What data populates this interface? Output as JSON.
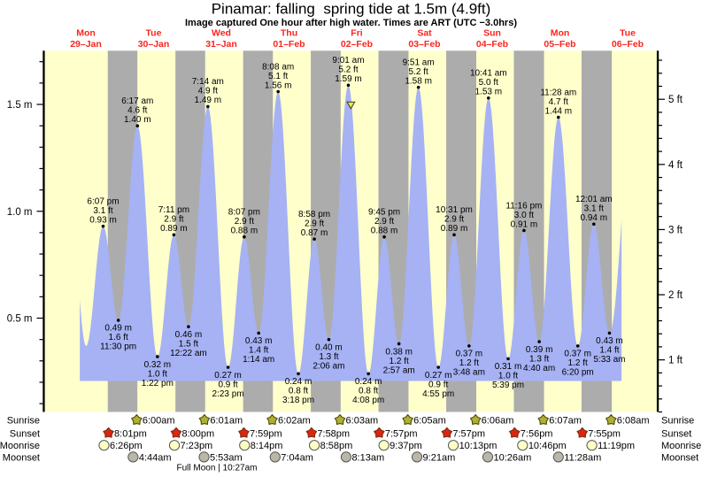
{
  "title": "Pinamar: falling  spring tide at 1.5m (4.9ft)",
  "subtitle": "Image captured One hour after high water. Times are ART (UTC −3.0hrs)",
  "days": [
    {
      "name": "Mon",
      "date": "29–Jan"
    },
    {
      "name": "Tue",
      "date": "30–Jan"
    },
    {
      "name": "Wed",
      "date": "31–Jan"
    },
    {
      "name": "Thu",
      "date": "01–Feb"
    },
    {
      "name": "Fri",
      "date": "02–Feb"
    },
    {
      "name": "Sat",
      "date": "03–Feb"
    },
    {
      "name": "Sun",
      "date": "04–Feb"
    },
    {
      "name": "Mon",
      "date": "05–Feb"
    },
    {
      "name": "Tue",
      "date": "06–Feb"
    }
  ],
  "chart_data": {
    "type": "area",
    "title": "Pinamar: falling  spring tide at 1.5m (4.9ft)",
    "x_axis": "time, hours since Mon 29-Jan 00:00 ART",
    "y_axis_left": {
      "unit": "m",
      "major_ticks": [
        {
          "label": "0.5 m",
          "v": 0.5
        },
        {
          "label": "1.0 m",
          "v": 1.0
        },
        {
          "label": "1.5 m",
          "v": 1.5
        }
      ],
      "minor_step": 0.1,
      "minor_min": 0.1,
      "minor_max": 1.7
    },
    "y_axis_right": {
      "unit": "ft",
      "major_ticks": [
        {
          "label": "1 ft",
          "ft": 1
        },
        {
          "label": "2 ft",
          "ft": 2
        },
        {
          "label": "3 ft",
          "ft": 3
        },
        {
          "label": "4 ft",
          "ft": 4
        },
        {
          "label": "5 ft",
          "ft": 5
        }
      ],
      "minor_step": 0.2,
      "minor_min": 0.2,
      "minor_max": 5.6
    },
    "curve_start": {
      "t": 9.85,
      "m": 0.59
    },
    "curve_end": {
      "t": 201.85,
      "m": 0.96
    },
    "hidden_pre_high": {
      "t": 5.2,
      "m": 1.28
    },
    "unlabeled_first_low": {
      "t": 12.1,
      "m": 0.37
    },
    "hidden_post_high": {
      "t": 206.2,
      "m": 1.5
    },
    "extrema": [
      {
        "kind": "high",
        "t": 18.1167,
        "m": 0.93,
        "time": "6:07 pm",
        "ft_label": "3.1 ft",
        "m_label": "0.93 m"
      },
      {
        "kind": "low",
        "t": 23.5,
        "m": 0.49,
        "time": "11:30 pm",
        "ft_label": "1.6 ft",
        "m_label": "0.49 m"
      },
      {
        "kind": "high",
        "t": 30.2833,
        "m": 1.4,
        "time": "6:17 am",
        "ft_label": "4.6 ft",
        "m_label": "1.40 m"
      },
      {
        "kind": "low",
        "t": 37.3667,
        "m": 0.32,
        "time": "1:22 pm",
        "ft_label": "1.0 ft",
        "m_label": "0.32 m"
      },
      {
        "kind": "high",
        "t": 43.1833,
        "m": 0.89,
        "time": "7:11 pm",
        "ft_label": "2.9 ft",
        "m_label": "0.89 m"
      },
      {
        "kind": "low",
        "t": 48.3667,
        "m": 0.46,
        "time": "12:22 am",
        "ft_label": "1.5 ft",
        "m_label": "0.46 m"
      },
      {
        "kind": "high",
        "t": 55.2333,
        "m": 1.49,
        "time": "7:14 am",
        "ft_label": "4.9 ft",
        "m_label": "1.49 m"
      },
      {
        "kind": "low",
        "t": 62.3833,
        "m": 0.27,
        "time": "2:23 pm",
        "ft_label": "0.9 ft",
        "m_label": "0.27 m"
      },
      {
        "kind": "high",
        "t": 68.1167,
        "m": 0.88,
        "time": "8:07 pm",
        "ft_label": "2.9 ft",
        "m_label": "0.88 m"
      },
      {
        "kind": "low",
        "t": 73.2333,
        "m": 0.43,
        "time": "1:14 am",
        "ft_label": "1.4 ft",
        "m_label": "0.43 m"
      },
      {
        "kind": "high",
        "t": 80.1333,
        "m": 1.56,
        "time": "8:08 am",
        "ft_label": "5.1 ft",
        "m_label": "1.56 m"
      },
      {
        "kind": "low",
        "t": 87.3,
        "m": 0.24,
        "time": "3:18 pm",
        "ft_label": "0.8 ft",
        "m_label": "0.24 m"
      },
      {
        "kind": "high",
        "t": 92.9667,
        "m": 0.87,
        "time": "8:58 pm",
        "ft_label": "2.9 ft",
        "m_label": "0.87 m"
      },
      {
        "kind": "low",
        "t": 98.1,
        "m": 0.4,
        "time": "2:06 am",
        "ft_label": "1.3 ft",
        "m_label": "0.40 m"
      },
      {
        "kind": "high",
        "t": 105.0167,
        "m": 1.59,
        "time": "9:01 am",
        "ft_label": "5.2 ft",
        "m_label": "1.59 m"
      },
      {
        "kind": "low",
        "t": 112.1333,
        "m": 0.24,
        "time": "4:08 pm",
        "ft_label": "0.8 ft",
        "m_label": "0.24 m"
      },
      {
        "kind": "high",
        "t": 117.75,
        "m": 0.88,
        "time": "9:45 pm",
        "ft_label": "2.9 ft",
        "m_label": "0.88 m"
      },
      {
        "kind": "low",
        "t": 122.95,
        "m": 0.38,
        "time": "2:57 am",
        "ft_label": "1.2 ft",
        "m_label": "0.38 m"
      },
      {
        "kind": "high",
        "t": 129.85,
        "m": 1.58,
        "time": "9:51 am",
        "ft_label": "5.2 ft",
        "m_label": "1.58 m"
      },
      {
        "kind": "low",
        "t": 136.9167,
        "m": 0.27,
        "time": "4:55 pm",
        "ft_label": "0.9 ft",
        "m_label": "0.27 m"
      },
      {
        "kind": "high",
        "t": 142.5167,
        "m": 0.89,
        "time": "10:31 pm",
        "ft_label": "2.9 ft",
        "m_label": "0.89 m"
      },
      {
        "kind": "low",
        "t": 147.8,
        "m": 0.37,
        "time": "3:48 am",
        "ft_label": "1.2 ft",
        "m_label": "0.37 m"
      },
      {
        "kind": "high",
        "t": 154.6833,
        "m": 1.53,
        "time": "10:41 am",
        "ft_label": "5.0 ft",
        "m_label": "1.53 m"
      },
      {
        "kind": "low",
        "t": 161.65,
        "m": 0.31,
        "time": "5:39 pm",
        "ft_label": "1.0 ft",
        "m_label": "0.31 m"
      },
      {
        "kind": "high",
        "t": 167.2667,
        "m": 0.91,
        "time": "11:16 pm",
        "ft_label": "3.0 ft",
        "m_label": "0.91 m"
      },
      {
        "kind": "low",
        "t": 172.6667,
        "m": 0.39,
        "time": "4:40 am",
        "ft_label": "1.3 ft",
        "m_label": "0.39 m"
      },
      {
        "kind": "high",
        "t": 179.4667,
        "m": 1.44,
        "time": "11:28 am",
        "ft_label": "4.7 ft",
        "m_label": "1.44 m"
      },
      {
        "kind": "low",
        "t": 186.3333,
        "m": 0.37,
        "time": "6:20 pm",
        "ft_label": "1.2 ft",
        "m_label": "0.37 m"
      },
      {
        "kind": "high",
        "t": 192.0167,
        "m": 0.94,
        "time": "12:01 am",
        "ft_label": "3.1 ft",
        "m_label": "0.94 m"
      },
      {
        "kind": "low",
        "t": 197.55,
        "m": 0.43,
        "time": "5:33 am",
        "ft_label": "1.4 ft",
        "m_label": "0.43 m"
      }
    ],
    "now_marker": {
      "t": 105.93,
      "m": 1.5
    }
  },
  "astro": {
    "rows": [
      {
        "key": "sunrise",
        "label": "Sunrise",
        "icon": "sunrise-star",
        "events": [
          {
            "time": "6:00am",
            "t": 30.0
          },
          {
            "time": "6:01am",
            "t": 54.0167
          },
          {
            "time": "6:02am",
            "t": 78.0333
          },
          {
            "time": "6:03am",
            "t": 102.05
          },
          {
            "time": "6:05am",
            "t": 126.0833
          },
          {
            "time": "6:06am",
            "t": 150.1
          },
          {
            "time": "6:07am",
            "t": 174.1167
          },
          {
            "time": "6:08am",
            "t": 198.1333
          }
        ]
      },
      {
        "key": "sunset",
        "label": "Sunset",
        "icon": "sunset-star",
        "events": [
          {
            "time": "8:01pm",
            "t": 20.0167
          },
          {
            "time": "8:00pm",
            "t": 44.0
          },
          {
            "time": "7:59pm",
            "t": 67.9833
          },
          {
            "time": "7:58pm",
            "t": 91.9667
          },
          {
            "time": "7:57pm",
            "t": 115.95
          },
          {
            "time": "7:57pm",
            "t": 139.95
          },
          {
            "time": "7:56pm",
            "t": 163.9333
          },
          {
            "time": "7:55pm",
            "t": 187.9167
          }
        ]
      },
      {
        "key": "moonrise",
        "label": "Moonrise",
        "icon": "moonrise-circle",
        "events": [
          {
            "time": "6:26pm",
            "t": 18.4333
          },
          {
            "time": "7:23pm",
            "t": 43.3833
          },
          {
            "time": "8:14pm",
            "t": 68.2333
          },
          {
            "time": "8:58pm",
            "t": 92.9667
          },
          {
            "time": "9:37pm",
            "t": 117.6167
          },
          {
            "time": "10:13pm",
            "t": 142.2167
          },
          {
            "time": "10:46pm",
            "t": 166.7667
          },
          {
            "time": "11:19pm",
            "t": 191.3167
          }
        ]
      },
      {
        "key": "moonset",
        "label": "Moonset",
        "icon": "moonset-circle",
        "events": [
          {
            "time": "4:44am",
            "t": 28.7333
          },
          {
            "time": "5:53am",
            "t": 53.8833
          },
          {
            "time": "7:04am",
            "t": 79.0667
          },
          {
            "time": "8:13am",
            "t": 104.2167
          },
          {
            "time": "9:21am",
            "t": 129.35
          },
          {
            "time": "10:26am",
            "t": 154.4333
          },
          {
            "time": "11:28am",
            "t": 179.4667
          }
        ]
      }
    ],
    "footer": "Full Moon | 10:27am",
    "footer_t": 58.45
  },
  "colors": {
    "background": "#ffffff",
    "day_fill": "#ffffcc",
    "night_fill": "#acacac",
    "tide_fill": "#a6b2f4",
    "day_label": "#fb241c",
    "axis": "#000000",
    "extremum_dot": "#000000",
    "sunrise_star_fill": "#b0af32",
    "sunset_star_fill": "#dd2413",
    "moonrise_fill": "#ffffc4",
    "moonset_fill": "#bab7a8",
    "icon_stroke": "#555555",
    "sunrise_star_stroke": "#4c4c08",
    "sunset_star_stroke": "#7c2d0b",
    "now_marker_fill": "#efe93e"
  }
}
